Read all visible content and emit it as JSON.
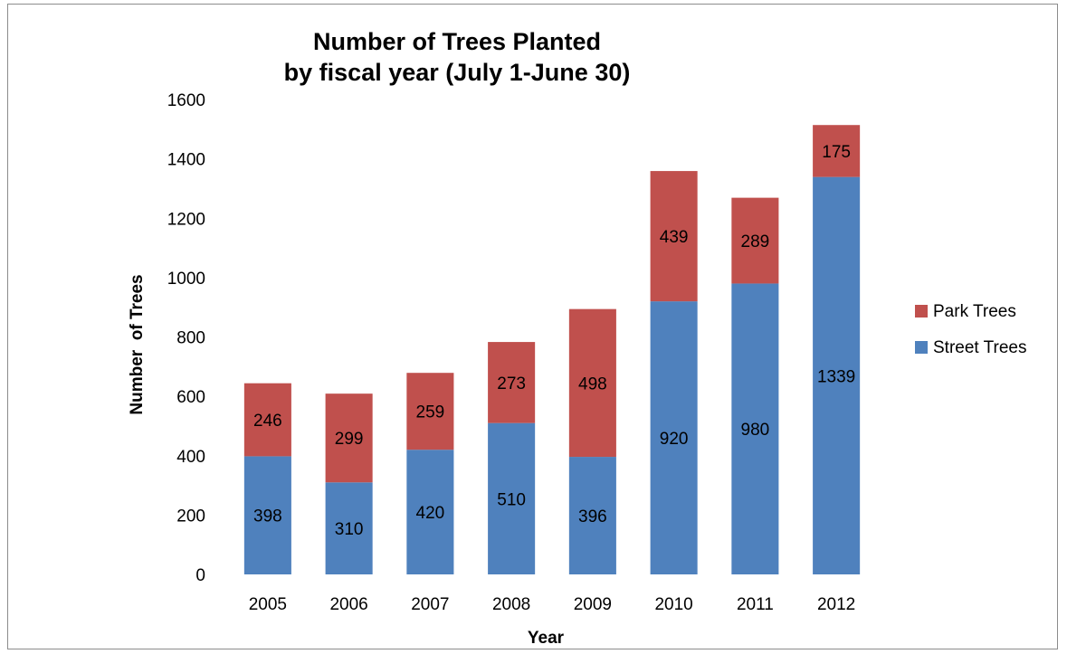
{
  "chart_data": {
    "type": "bar",
    "stacked": true,
    "title_lines": [
      "Number of Trees Planted",
      "by fiscal year (July 1-June 30)"
    ],
    "xlabel": "Year",
    "ylabel": "Number  of Trees",
    "categories": [
      "2005",
      "2006",
      "2007",
      "2008",
      "2009",
      "2010",
      "2011",
      "2012"
    ],
    "series": [
      {
        "name": "Street Trees",
        "color": "#4f81bd",
        "values": [
          398,
          310,
          420,
          510,
          396,
          920,
          980,
          1339
        ]
      },
      {
        "name": "Park Trees",
        "color": "#c0504d",
        "values": [
          246,
          299,
          259,
          273,
          498,
          439,
          289,
          175
        ]
      }
    ],
    "ylim": [
      0,
      1600
    ],
    "yticks": [
      0,
      200,
      400,
      600,
      800,
      1000,
      1200,
      1400,
      1600
    ],
    "grid": false,
    "legend_position": "right",
    "legend_order": [
      "Park Trees",
      "Street Trees"
    ]
  }
}
